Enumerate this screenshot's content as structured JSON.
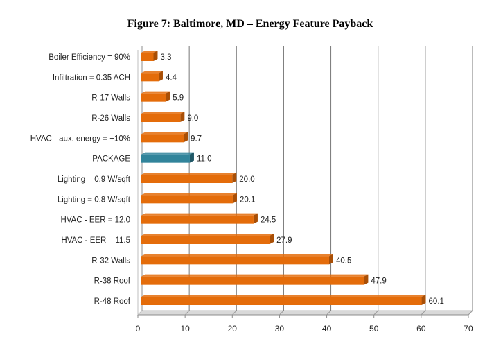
{
  "chart_data": {
    "type": "bar",
    "orientation": "horizontal",
    "title": "Figure 7: Baltimore, MD – Energy Feature Payback",
    "xlabel": "",
    "ylabel": "",
    "xlim": [
      0,
      70
    ],
    "xticks": [
      0,
      10,
      20,
      30,
      40,
      50,
      60,
      70
    ],
    "grid": true,
    "categories": [
      "Boiler Efficiency = 90%",
      "Infiltration = 0.35 ACH",
      "R-17 Walls",
      "R-26 Walls",
      "HVAC - aux. energy = +10%",
      "PACKAGE",
      "Lighting = 0.9 W/sqft",
      "Lighting = 0.8 W/sqft",
      "HVAC - EER = 12.0",
      "HVAC - EER = 11.5",
      "R-32 Walls",
      "R-38 Roof",
      "R-48 Roof"
    ],
    "values": [
      3.3,
      4.4,
      5.9,
      9.0,
      9.7,
      11.0,
      20.0,
      20.1,
      24.5,
      27.9,
      40.5,
      47.9,
      60.1
    ],
    "value_labels": [
      "3.3",
      "4.4",
      "5.9",
      "9.0",
      "9.7",
      "11.0",
      "20.0",
      "20.1",
      "24.5",
      "27.9",
      "40.5",
      "47.9",
      "60.1"
    ],
    "highlight_category": "PACKAGE",
    "colors": {
      "bar": "#E46C0A",
      "bar_side": "#A94F06",
      "highlight": "#31849B",
      "highlight_side": "#205867",
      "grid": "#777777",
      "floor": "#D9D9D9"
    }
  }
}
